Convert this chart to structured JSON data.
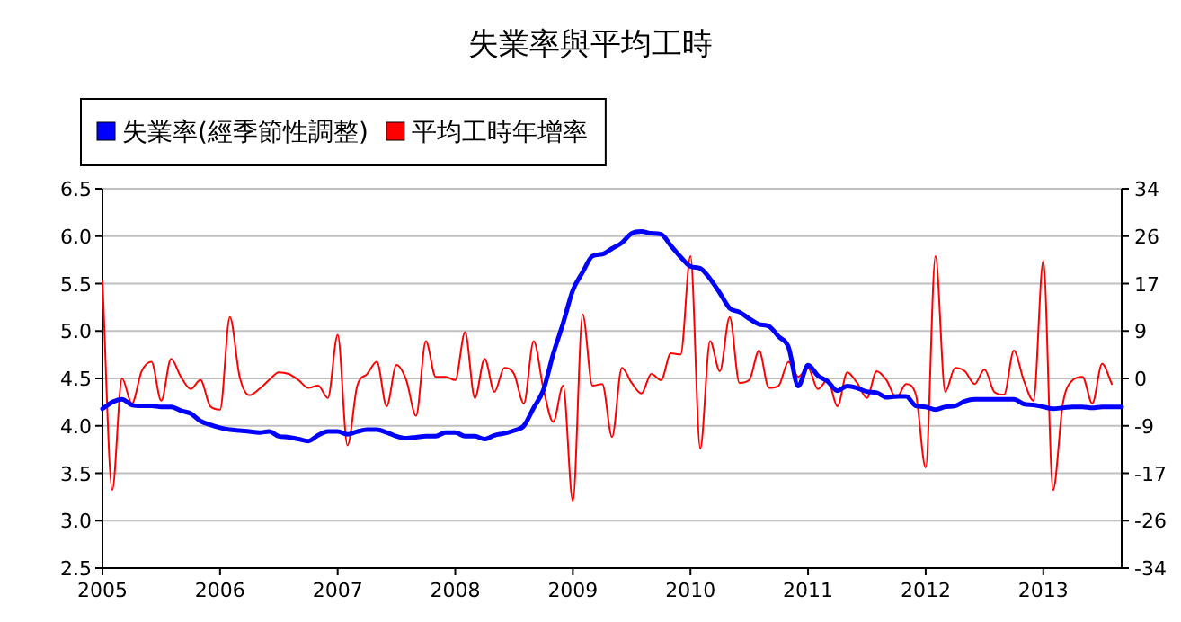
{
  "chart_data": {
    "type": "line",
    "title": "失業率與平均工時",
    "x": [
      "2005-01",
      "2005-02",
      "2005-03",
      "2005-04",
      "2005-05",
      "2005-06",
      "2005-07",
      "2005-08",
      "2005-09",
      "2005-10",
      "2005-11",
      "2005-12",
      "2006-01",
      "2006-02",
      "2006-03",
      "2006-04",
      "2006-05",
      "2006-06",
      "2006-07",
      "2006-08",
      "2006-09",
      "2006-10",
      "2006-11",
      "2006-12",
      "2007-01",
      "2007-02",
      "2007-03",
      "2007-04",
      "2007-05",
      "2007-06",
      "2007-07",
      "2007-08",
      "2007-09",
      "2007-10",
      "2007-11",
      "2007-12",
      "2008-01",
      "2008-02",
      "2008-03",
      "2008-04",
      "2008-05",
      "2008-06",
      "2008-07",
      "2008-08",
      "2008-09",
      "2008-10",
      "2008-11",
      "2008-12",
      "2009-01",
      "2009-02",
      "2009-03",
      "2009-04",
      "2009-05",
      "2009-06",
      "2009-07",
      "2009-08",
      "2009-09",
      "2009-10",
      "2009-11",
      "2009-12",
      "2010-01",
      "2010-02",
      "2010-03",
      "2010-04",
      "2010-05",
      "2010-06",
      "2010-07",
      "2010-08",
      "2010-09",
      "2010-10",
      "2010-11",
      "2010-12",
      "2011-01",
      "2011-02",
      "2011-03",
      "2011-04",
      "2011-05",
      "2011-06",
      "2011-07",
      "2011-08",
      "2011-09",
      "2011-10",
      "2011-11",
      "2011-12",
      "2012-01",
      "2012-02",
      "2012-03",
      "2012-04",
      "2012-05",
      "2012-06",
      "2012-07",
      "2012-08",
      "2012-09",
      "2012-10",
      "2012-11",
      "2012-12",
      "2013-01",
      "2013-02",
      "2013-03",
      "2013-04",
      "2013-05",
      "2013-06",
      "2013-07",
      "2013-08",
      "2013-09"
    ],
    "series": [
      {
        "name": "失業率(經季節性調整)",
        "color": "#0000ff",
        "values": [
          4.18,
          4.25,
          4.28,
          4.22,
          4.21,
          4.21,
          4.2,
          4.2,
          4.16,
          4.13,
          4.05,
          4.01,
          3.98,
          3.96,
          3.95,
          3.94,
          3.93,
          3.94,
          3.89,
          3.88,
          3.86,
          3.84,
          3.9,
          3.94,
          3.94,
          3.91,
          3.94,
          3.96,
          3.96,
          3.93,
          3.89,
          3.87,
          3.88,
          3.89,
          3.89,
          3.93,
          3.93,
          3.89,
          3.89,
          3.86,
          3.9,
          3.92,
          3.95,
          4.0,
          4.19,
          4.38,
          4.76,
          5.08,
          5.43,
          5.62,
          5.79,
          5.81,
          5.87,
          5.93,
          6.03,
          6.05,
          6.03,
          6.02,
          5.9,
          5.78,
          5.68,
          5.66,
          5.55,
          5.4,
          5.24,
          5.2,
          5.13,
          5.07,
          5.05,
          4.94,
          4.83,
          4.42,
          4.64,
          4.53,
          4.47,
          4.37,
          4.42,
          4.4,
          4.36,
          4.35,
          4.3,
          4.31,
          4.31,
          4.21,
          4.2,
          4.17,
          4.2,
          4.21,
          4.26,
          4.28,
          4.28,
          4.28,
          4.28,
          4.28,
          4.23,
          4.22,
          4.2,
          4.18,
          4.19,
          4.2,
          4.2,
          4.19,
          4.2,
          4.2,
          4.2
        ]
      },
      {
        "name": "平均工時年增率",
        "color": "#ff0000",
        "axis": "y2",
        "values": [
          17.4,
          -20,
          0,
          -4.5,
          1.3,
          3,
          -4,
          3.5,
          0.3,
          -1.9,
          -0.3,
          -5,
          -5.6,
          11,
          0.3,
          -3,
          -1.9,
          -0.3,
          1.1,
          0.8,
          -0.3,
          -1.7,
          -1.3,
          -3.5,
          7.8,
          -12,
          -1.3,
          0.8,
          3,
          -5,
          2.4,
          -0.3,
          -6.7,
          6.7,
          0.3,
          0.3,
          -0.3,
          8.3,
          -3.5,
          3.5,
          -2.4,
          1.9,
          0.8,
          -4.5,
          6.7,
          -1.9,
          -7.8,
          -1.3,
          -22,
          11.5,
          -1.3,
          -1,
          -10.5,
          1.9,
          -0.8,
          -2.7,
          0.8,
          -0.3,
          4.5,
          4.3,
          21.9,
          -12.6,
          6.7,
          1.3,
          11,
          -0.8,
          -0.3,
          5,
          -1.7,
          -1.3,
          3,
          0.3,
          1.9,
          -1.9,
          -0.3,
          -5,
          1.1,
          -0.8,
          -3.5,
          1.3,
          -0.3,
          -3.5,
          -1,
          -2.9,
          -16,
          21.9,
          -2.4,
          1.9,
          1.3,
          -1,
          1.6,
          -2.4,
          -2.9,
          5,
          -0.3,
          -4,
          21.1,
          -20,
          -4.5,
          -0.3,
          0.3,
          -4.5,
          2.6,
          -1,
          null
        ]
      }
    ],
    "xlim": [
      "2005-01",
      "2013-09"
    ],
    "xticks": [
      "2005",
      "2006",
      "2007",
      "2008",
      "2009",
      "2010",
      "2011",
      "2012",
      "2013"
    ],
    "ylim": [
      2.5,
      6.5
    ],
    "yticks": [
      2.5,
      {
        "value": 3,
        "label": "3.0"
      },
      3.5,
      {
        "value": 4,
        "label": "4.0"
      },
      4.5,
      {
        "value": 5,
        "label": "5.0"
      },
      5.5,
      {
        "value": 6,
        "label": "6.0"
      },
      6.5
    ],
    "y2lim": [
      -34,
      34
    ],
    "y2ticks": [
      -34,
      {
        "value": -25.5,
        "label": "-26"
      },
      -17,
      {
        "value": -8.5,
        "label": "-9"
      },
      0,
      {
        "value": 8.5,
        "label": "9"
      },
      17,
      {
        "value": 25.5,
        "label": "26"
      },
      34
    ],
    "grid": "y",
    "legend": "top left",
    "marker": "none",
    "line_style": "solid"
  }
}
